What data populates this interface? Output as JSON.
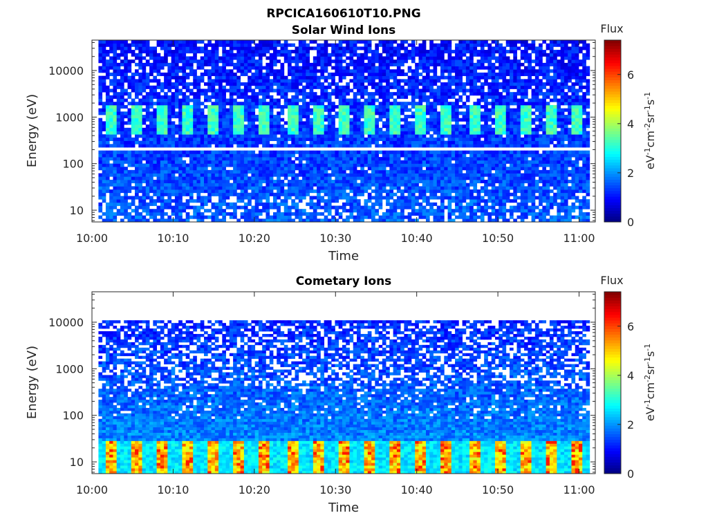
{
  "figure_title": "RPCICA160610T10.PNG",
  "chart_data": [
    {
      "type": "heatmap",
      "title": "Solar Wind Ions",
      "xlabel": "Time",
      "ylabel": "Energy (eV)",
      "x_ticks": [
        "10:00",
        "10:10",
        "10:20",
        "10:30",
        "10:40",
        "10:50",
        "11:00"
      ],
      "x_range_minutes": [
        0,
        62
      ],
      "y_scale": "log",
      "y_ticks": [
        "10",
        "100",
        "1000",
        "10000"
      ],
      "y_range": [
        5.6,
        45000
      ],
      "data_time_range_minutes": [
        0.8,
        61.3
      ],
      "data_energy_top": 45000,
      "colorbar": {
        "label": "Flux",
        "unit": "eV-1cm-2sr-1s-1",
        "range": [
          0,
          7.4
        ],
        "ticks": [
          "0",
          "2",
          "4",
          "6"
        ]
      },
      "features": {
        "pulse_period_minutes": 3.2,
        "pulse_energy_band": [
          450,
          1800
        ],
        "pulse_flux": 3.2,
        "gap_energy": 200,
        "background_flux": 1.0,
        "high_energy_missing_prob": 0.18
      }
    },
    {
      "type": "heatmap",
      "title": "Cometary Ions",
      "xlabel": "Time",
      "ylabel": "Energy (eV)",
      "x_ticks": [
        "10:00",
        "10:10",
        "10:20",
        "10:30",
        "10:40",
        "10:50",
        "11:00"
      ],
      "x_range_minutes": [
        0,
        62
      ],
      "y_scale": "log",
      "y_ticks": [
        "10",
        "100",
        "1000",
        "10000"
      ],
      "y_range": [
        5.6,
        45000
      ],
      "data_time_range_minutes": [
        0.8,
        61.3
      ],
      "data_energy_top": 11000,
      "colorbar": {
        "label": "Flux",
        "unit": "eV-1cm-2sr-1s-1",
        "range": [
          0,
          7.4
        ],
        "ticks": [
          "0",
          "2",
          "4",
          "6"
        ]
      },
      "features": {
        "pulse_period_minutes": 3.2,
        "pulse_energy_band": [
          5.6,
          30
        ],
        "pulse_flux": 4.6,
        "peak_flux": 6.3,
        "background_flux": 1.2,
        "high_energy_missing_prob": 0.3
      }
    }
  ]
}
